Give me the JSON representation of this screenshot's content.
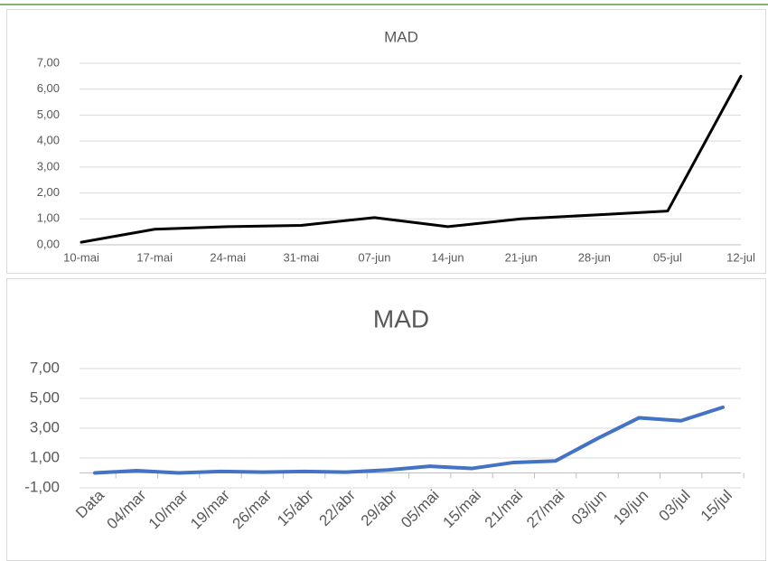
{
  "chart_data": [
    {
      "type": "line",
      "title": "MAD",
      "categories": [
        "10-mai",
        "17-mai",
        "24-mai",
        "31-mai",
        "07-jun",
        "14-jun",
        "21-jun",
        "28-jun",
        "05-jul",
        "12-jul"
      ],
      "series": [
        {
          "name": "MAD",
          "color": "#000000",
          "values": [
            0.1,
            0.6,
            0.7,
            0.75,
            1.05,
            0.7,
            1.0,
            1.15,
            1.3,
            6.5
          ]
        }
      ],
      "ylim": [
        0,
        7
      ],
      "yticks": [
        {
          "value": 0,
          "label": "0,00"
        },
        {
          "value": 1,
          "label": "1,00"
        },
        {
          "value": 2,
          "label": "2,00"
        },
        {
          "value": 3,
          "label": "3,00"
        },
        {
          "value": 4,
          "label": "4,00"
        },
        {
          "value": 5,
          "label": "5,00"
        },
        {
          "value": 6,
          "label": "6,00"
        },
        {
          "value": 7,
          "label": "7,00"
        }
      ],
      "grid": true
    },
    {
      "type": "line",
      "title": "MAD",
      "categories": [
        "Data",
        "04/mar",
        "10/mar",
        "19/mar",
        "26/mar",
        "15/abr",
        "22/abr",
        "29/abr",
        "05/mai",
        "15/mai",
        "21/mai",
        "27/mai",
        "03/jun",
        "19/jun",
        "03/jul",
        "15/jul"
      ],
      "series": [
        {
          "name": "MAD",
          "color": "#4472c4",
          "values": [
            0,
            0.15,
            0,
            0.1,
            0.05,
            0.1,
            0.05,
            0.2,
            0.45,
            0.3,
            0.7,
            0.8,
            2.3,
            3.7,
            3.5,
            4.4
          ]
        }
      ],
      "ylim": [
        -1,
        7
      ],
      "yticks": [
        {
          "value": -1,
          "label": "-1,00"
        },
        {
          "value": 1,
          "label": "1,00"
        },
        {
          "value": 3,
          "label": "3,00"
        },
        {
          "value": 5,
          "label": "5,00"
        },
        {
          "value": 7,
          "label": "7,00"
        }
      ],
      "grid": true
    }
  ]
}
